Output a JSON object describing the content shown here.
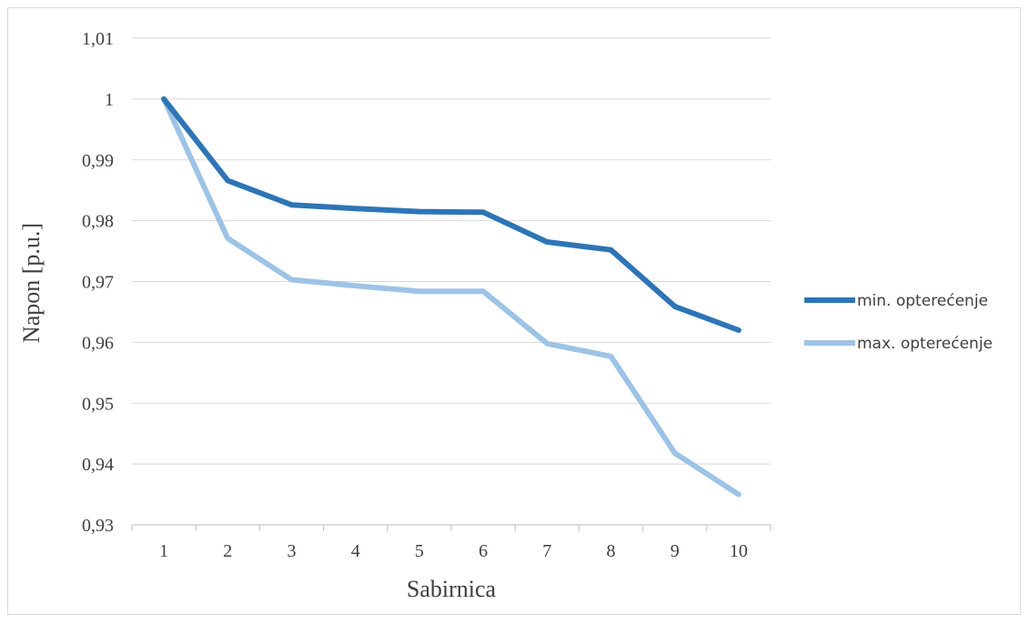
{
  "chart_data": {
    "type": "line",
    "xlabel": "Sabirnica",
    "ylabel": "Napon [p.u.]",
    "categories": [
      "1",
      "2",
      "3",
      "4",
      "5",
      "6",
      "7",
      "8",
      "9",
      "10"
    ],
    "ylim": [
      0.93,
      1.01
    ],
    "yticks": [
      "0,93",
      "0,94",
      "0,95",
      "0,96",
      "0,97",
      "0,98",
      "0,99",
      "1",
      "1,01"
    ],
    "grid": true,
    "legend_position": "right",
    "series": [
      {
        "name": "min. opterećenje",
        "color": "#2E75B6",
        "values": [
          1.0,
          0.9866,
          0.9826,
          0.982,
          0.9815,
          0.9814,
          0.9765,
          0.9752,
          0.9659,
          0.962
        ]
      },
      {
        "name": "max. opterećenje",
        "color": "#9DC3E6",
        "values": [
          1.0,
          0.9771,
          0.9703,
          0.9693,
          0.9684,
          0.9684,
          0.9598,
          0.9577,
          0.9418,
          0.935
        ]
      }
    ]
  }
}
